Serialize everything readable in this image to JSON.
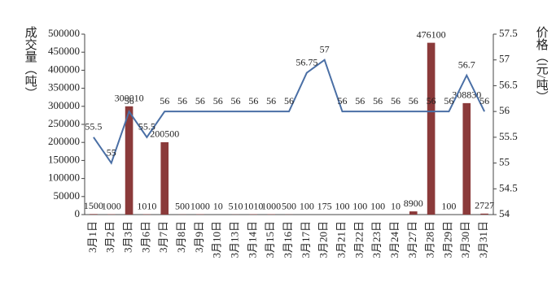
{
  "chart_data": {
    "type": "bar_line",
    "ylabel": "成交量（吨）",
    "y2label": "价格（元/吨）",
    "categories": [
      "3月1日",
      "3月2日",
      "3月3日",
      "3月6日",
      "3月7日",
      "3月8日",
      "3月9日",
      "3月10日",
      "3月13日",
      "3月14日",
      "3月15日",
      "3月16日",
      "3月17日",
      "3月20日",
      "3月21日",
      "3月22日",
      "3月23日",
      "3月24日",
      "3月27日",
      "3月28日",
      "3月29日",
      "3月30日",
      "3月31日"
    ],
    "series": [
      {
        "name": "成交量",
        "type": "bar",
        "color": "#8b3a3a",
        "values": [
          1500,
          1000,
          300010,
          1010,
          200500,
          500,
          1000,
          10,
          510,
          1010,
          1000,
          500,
          100,
          175,
          100,
          100,
          100,
          10,
          8900,
          476100,
          100,
          308830,
          2727
        ]
      },
      {
        "name": "价格",
        "type": "line",
        "axis": "y2",
        "color": "#4a6fa5",
        "values": [
          55.5,
          55,
          56,
          55.5,
          56,
          56,
          56,
          56,
          56,
          56,
          56,
          56,
          56.75,
          57,
          56,
          56,
          56,
          56,
          56,
          56,
          56,
          56.7,
          56
        ]
      }
    ],
    "ylim": [
      0,
      500000
    ],
    "yticks": [
      0,
      50000,
      100000,
      150000,
      200000,
      250000,
      300000,
      350000,
      400000,
      450000,
      500000
    ],
    "y2lim": [
      54,
      57.5
    ],
    "y2ticks": [
      54,
      54.5,
      55,
      55.5,
      56,
      56.5,
      57,
      57.5
    ]
  }
}
